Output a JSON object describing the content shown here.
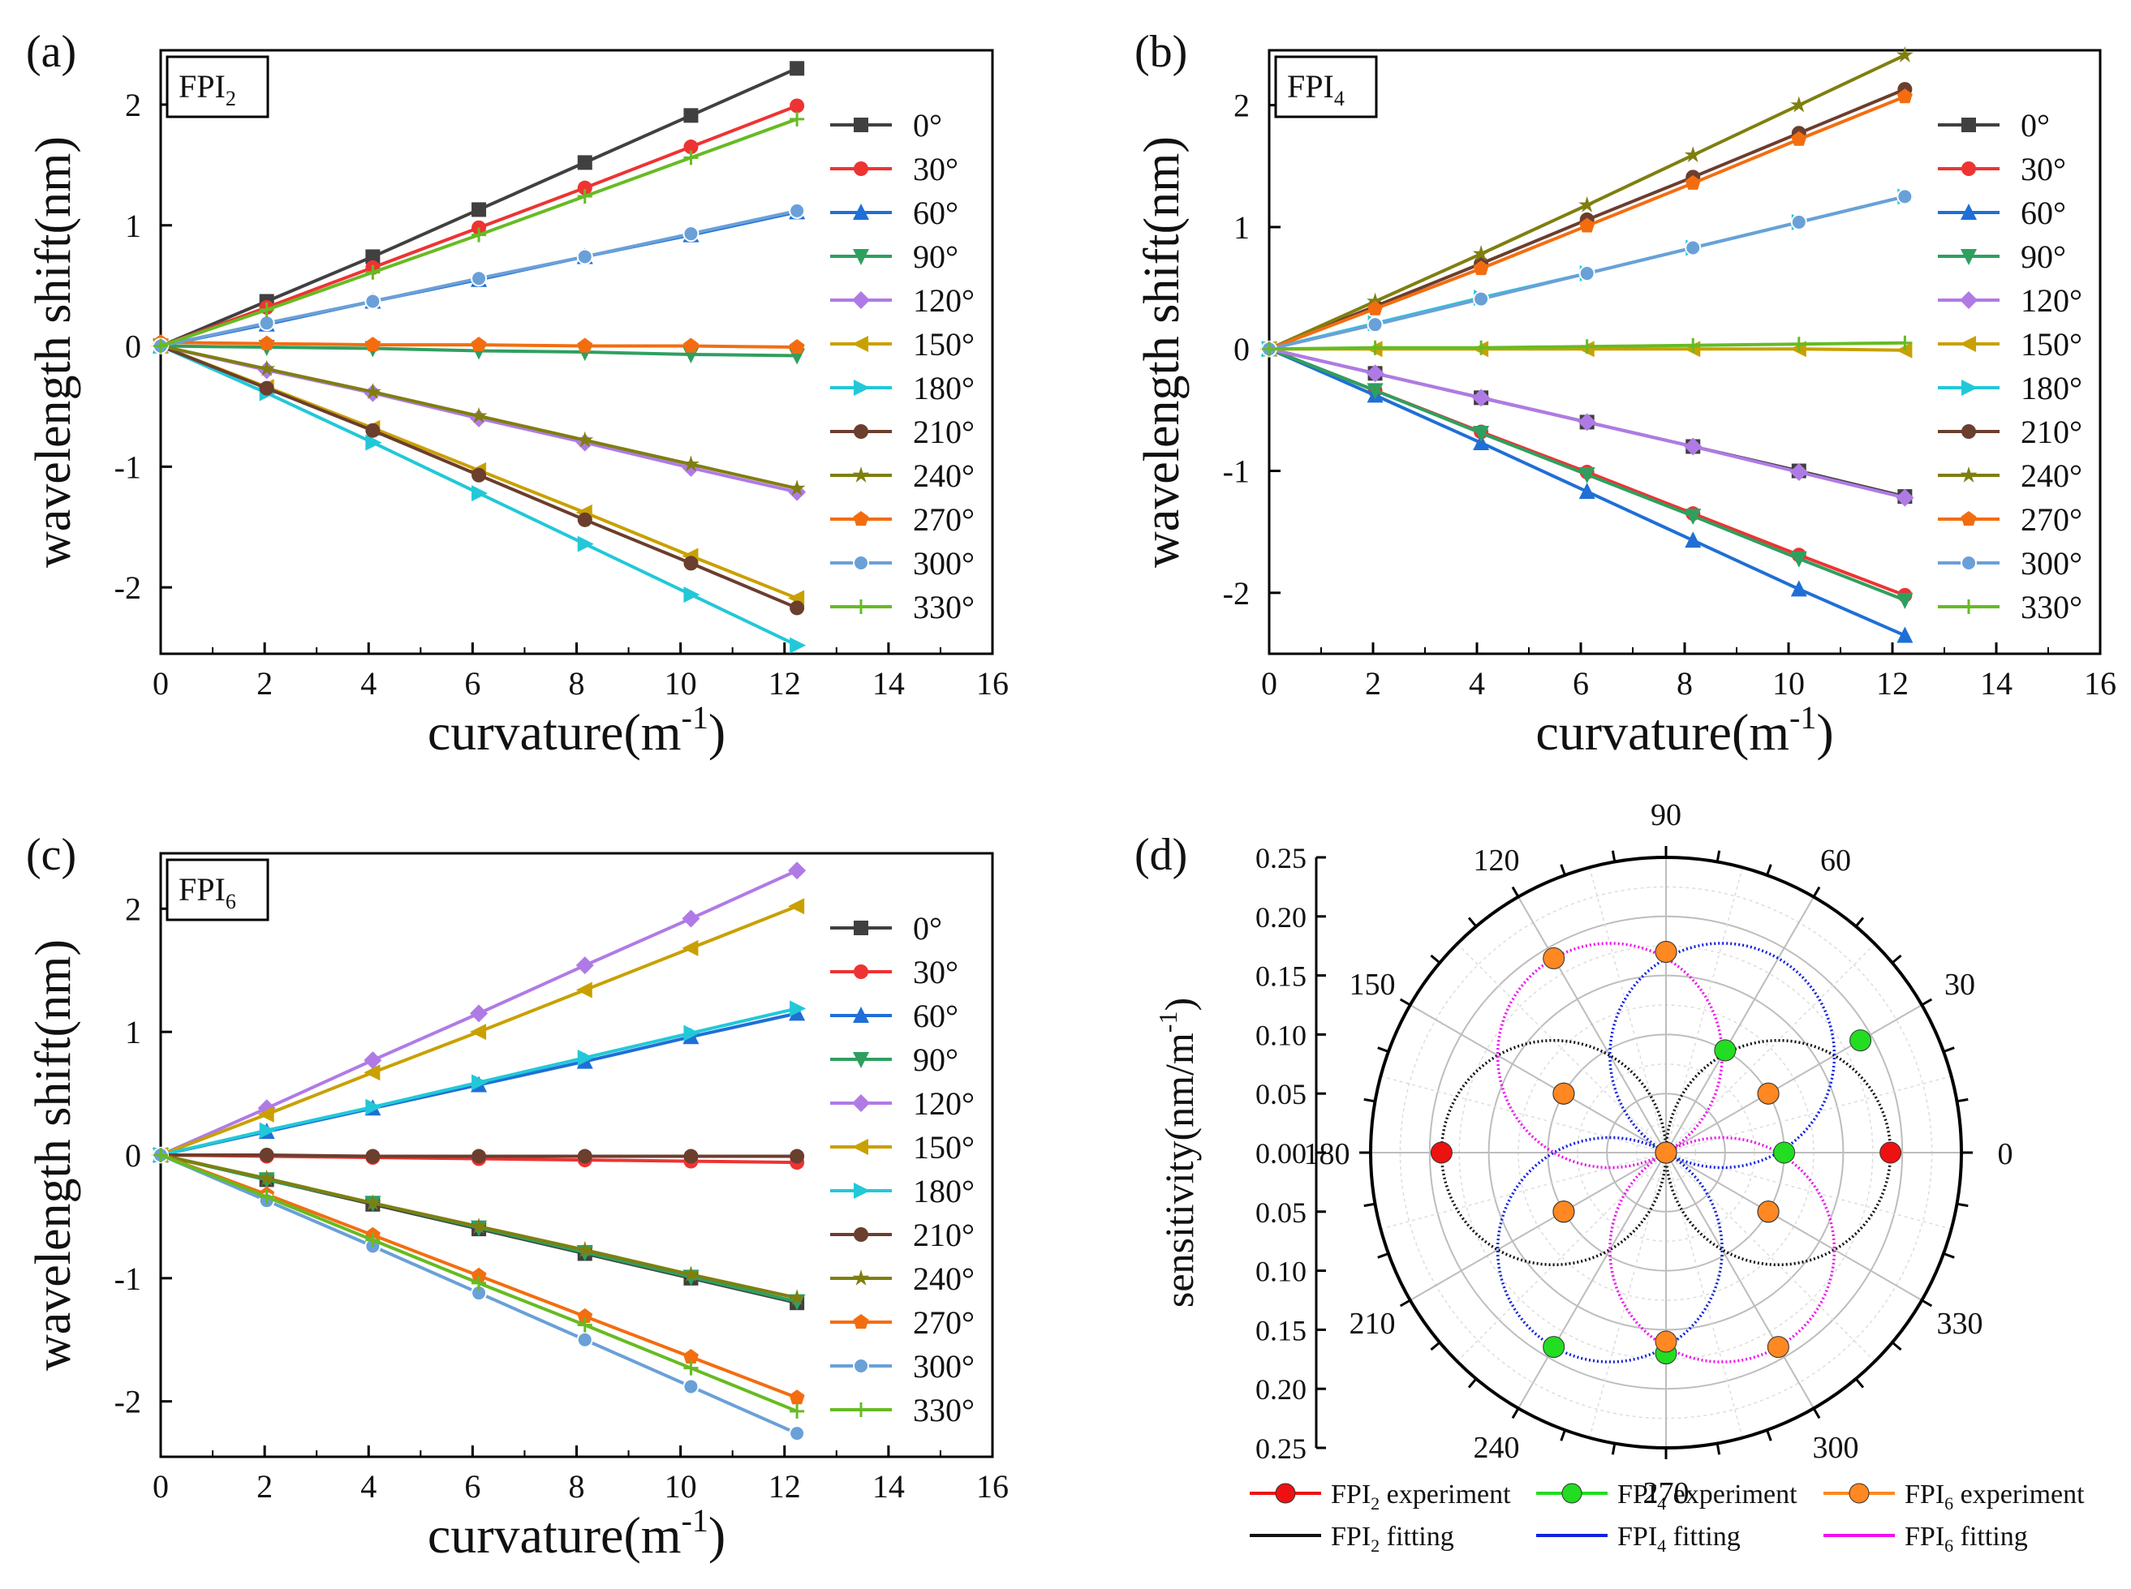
{
  "colors": {
    "0°": "#404040",
    "30°": "#ee3333",
    "60°": "#1f6fd6",
    "90°": "#2f9f5f",
    "120°": "#b07ae6",
    "150°": "#c9a000",
    "180°": "#22c8d8",
    "210°": "#6b3e2e",
    "240°": "#7f7f10",
    "270°": "#f36d10",
    "300°": "#6aa0d8",
    "330°": "#66bb22",
    "fpi2_exp": "#ee1111",
    "fpi4_exp": "#22dd22",
    "fpi6_exp": "#ff8822",
    "fpi2_fit": "#111111",
    "fpi4_fit": "#1122dd",
    "fpi6_fit": "#ee11ee"
  },
  "chart_data": [
    {
      "panel": "(a)",
      "type": "line",
      "label": "FPI",
      "label_sub": "2",
      "xlabel": "curvature(m",
      "xlabel_sup": "-1",
      "xlabel_end": ")",
      "ylabel": "wavelength shift(nm)",
      "xlim": [
        0,
        16
      ],
      "ylim": [
        -2.55,
        2.45
      ],
      "xticks": [
        0,
        2,
        4,
        6,
        8,
        10,
        12,
        14,
        16
      ],
      "yticks": [
        -2,
        -1,
        0,
        1,
        2
      ],
      "x": [
        0,
        2.04,
        4.08,
        6.12,
        8.16,
        10.2,
        12.24
      ],
      "series": [
        {
          "name": "0°",
          "values": [
            0,
            0.37,
            0.74,
            1.13,
            1.52,
            1.91,
            2.3
          ]
        },
        {
          "name": "30°",
          "values": [
            0,
            0.32,
            0.65,
            0.98,
            1.31,
            1.65,
            1.99
          ]
        },
        {
          "name": "60°",
          "values": [
            0,
            0.18,
            0.37,
            0.55,
            0.74,
            0.92,
            1.11
          ]
        },
        {
          "name": "90°",
          "values": [
            0,
            -0.01,
            -0.02,
            -0.04,
            -0.05,
            -0.07,
            -0.08
          ]
        },
        {
          "name": "120°",
          "values": [
            0,
            -0.2,
            -0.39,
            -0.6,
            -0.8,
            -1.01,
            -1.21
          ]
        },
        {
          "name": "150°",
          "values": [
            0,
            -0.34,
            -0.68,
            -1.03,
            -1.38,
            -1.74,
            -2.09
          ]
        },
        {
          "name": "180°",
          "values": [
            0,
            -0.39,
            -0.8,
            -1.22,
            -1.64,
            -2.06,
            -2.48
          ]
        },
        {
          "name": "210°",
          "values": [
            0,
            -0.35,
            -0.7,
            -1.07,
            -1.44,
            -1.8,
            -2.17
          ]
        },
        {
          "name": "240°",
          "values": [
            0,
            -0.19,
            -0.38,
            -0.58,
            -0.78,
            -0.98,
            -1.18
          ]
        },
        {
          "name": "270°",
          "values": [
            0.03,
            0.02,
            0.01,
            0.01,
            0.0,
            0.0,
            -0.01
          ]
        },
        {
          "name": "300°",
          "values": [
            0,
            0.19,
            0.37,
            0.56,
            0.74,
            0.93,
            1.12
          ]
        },
        {
          "name": "330°",
          "values": [
            0,
            0.3,
            0.61,
            0.92,
            1.24,
            1.56,
            1.88
          ]
        }
      ]
    },
    {
      "panel": "(b)",
      "type": "line",
      "label": "FPI",
      "label_sub": "4",
      "xlabel": "curvature(m",
      "xlabel_sup": "-1",
      "xlabel_end": ")",
      "ylabel": "wavelength shift(nm)",
      "xlim": [
        0,
        16
      ],
      "ylim": [
        -2.5,
        2.45
      ],
      "xticks": [
        0,
        2,
        4,
        6,
        8,
        10,
        12,
        14,
        16
      ],
      "yticks": [
        -2,
        -1,
        0,
        1,
        2
      ],
      "x": [
        0,
        2.04,
        4.08,
        6.12,
        8.16,
        10.2,
        12.24
      ],
      "series": [
        {
          "name": "0°",
          "values": [
            0,
            -0.2,
            -0.4,
            -0.6,
            -0.8,
            -1.0,
            -1.21
          ]
        },
        {
          "name": "30°",
          "values": [
            0,
            -0.34,
            -0.68,
            -1.01,
            -1.35,
            -1.69,
            -2.02
          ]
        },
        {
          "name": "60°",
          "values": [
            0,
            -0.38,
            -0.77,
            -1.17,
            -1.57,
            -1.97,
            -2.35
          ]
        },
        {
          "name": "90°",
          "values": [
            0,
            -0.34,
            -0.69,
            -1.03,
            -1.37,
            -1.72,
            -2.06
          ]
        },
        {
          "name": "120°",
          "values": [
            0,
            -0.2,
            -0.4,
            -0.6,
            -0.8,
            -1.01,
            -1.22
          ]
        },
        {
          "name": "150°",
          "values": [
            0,
            0.0,
            0.0,
            0.0,
            0.0,
            0.0,
            -0.01
          ]
        },
        {
          "name": "180°",
          "values": [
            0,
            0.21,
            0.42,
            0.62,
            0.83,
            1.04,
            1.25
          ]
        },
        {
          "name": "210°",
          "values": [
            0,
            0.35,
            0.7,
            1.06,
            1.41,
            1.77,
            2.13
          ]
        },
        {
          "name": "240°",
          "values": [
            0,
            0.39,
            0.78,
            1.18,
            1.59,
            2.0,
            2.41
          ]
        },
        {
          "name": "270°",
          "values": [
            0,
            0.33,
            0.66,
            1.01,
            1.36,
            1.72,
            2.07
          ]
        },
        {
          "name": "300°",
          "values": [
            0,
            0.2,
            0.41,
            0.62,
            0.83,
            1.04,
            1.25
          ]
        },
        {
          "name": "330°",
          "values": [
            0,
            0.01,
            0.01,
            0.02,
            0.03,
            0.04,
            0.05
          ]
        }
      ]
    },
    {
      "panel": "(c)",
      "type": "line",
      "label": "FPI",
      "label_sub": "6",
      "xlabel": "curvature(m",
      "xlabel_sup": "-1",
      "xlabel_end": ")",
      "ylabel": "wavelength shift(nm)",
      "xlim": [
        0,
        16
      ],
      "ylim": [
        -2.45,
        2.45
      ],
      "xticks": [
        0,
        2,
        4,
        6,
        8,
        10,
        12,
        14,
        16
      ],
      "yticks": [
        -2,
        -1,
        0,
        1,
        2
      ],
      "x": [
        0,
        2.04,
        4.08,
        6.12,
        8.16,
        10.2,
        12.24
      ],
      "series": [
        {
          "name": "0°",
          "values": [
            0,
            -0.2,
            -0.4,
            -0.6,
            -0.8,
            -1.0,
            -1.2
          ]
        },
        {
          "name": "30°",
          "values": [
            0,
            -0.01,
            -0.02,
            -0.03,
            -0.04,
            -0.05,
            -0.06
          ]
        },
        {
          "name": "60°",
          "values": [
            0,
            0.19,
            0.38,
            0.57,
            0.76,
            0.96,
            1.15
          ]
        },
        {
          "name": "90°",
          "values": [
            0,
            -0.2,
            -0.39,
            -0.59,
            -0.79,
            -0.99,
            -1.19
          ]
        },
        {
          "name": "120°",
          "values": [
            0,
            0.38,
            0.77,
            1.15,
            1.54,
            1.92,
            2.31
          ]
        },
        {
          "name": "150°",
          "values": [
            0,
            0.33,
            0.67,
            1.0,
            1.34,
            1.68,
            2.02
          ]
        },
        {
          "name": "180°",
          "values": [
            0,
            0.2,
            0.39,
            0.59,
            0.79,
            0.99,
            1.19
          ]
        },
        {
          "name": "210°",
          "values": [
            0,
            0.0,
            -0.01,
            -0.01,
            -0.01,
            -0.01,
            -0.01
          ]
        },
        {
          "name": "240°",
          "values": [
            0,
            -0.19,
            -0.39,
            -0.58,
            -0.77,
            -0.97,
            -1.16
          ]
        },
        {
          "name": "270°",
          "values": [
            0,
            -0.32,
            -0.65,
            -0.98,
            -1.31,
            -1.64,
            -1.97
          ]
        },
        {
          "name": "300°",
          "values": [
            0,
            -0.37,
            -0.74,
            -1.12,
            -1.5,
            -1.88,
            -2.26
          ]
        },
        {
          "name": "330°",
          "values": [
            0,
            -0.34,
            -0.69,
            -1.04,
            -1.38,
            -1.73,
            -2.08
          ]
        }
      ]
    },
    {
      "panel": "(d)",
      "type": "polar",
      "ylabel": "sensitivity(nm/m",
      "ylabel_sup": "-1",
      "ylabel_end": ")",
      "rmax": 0.25,
      "rticks": [
        0.05,
        0.1,
        0.15,
        0.2,
        0.25
      ],
      "yaxis_tick_labels": [
        "0.25",
        "0.20",
        "0.15",
        "0.10",
        "0.05",
        "0.00",
        "0.05",
        "0.10",
        "0.15",
        "0.20",
        "0.25"
      ],
      "angle_labels": [
        "0",
        "30",
        "60",
        "90",
        "120",
        "150",
        "180",
        "210",
        "240",
        "270",
        "300",
        "330"
      ],
      "angles_deg": [
        0,
        30,
        60,
        90,
        120,
        150,
        180,
        210,
        240,
        270,
        300,
        330
      ],
      "fits": [
        {
          "name": "FPI2 fitting",
          "amplitude": 0.19,
          "lobe_axis_deg": 0
        },
        {
          "name": "FPI4 fitting",
          "amplitude": 0.19,
          "lobe_axis_deg": 60
        },
        {
          "name": "FPI6 fitting",
          "amplitude": 0.19,
          "lobe_axis_deg": 120
        }
      ],
      "experiments": [
        {
          "name": "FPI2 experiment",
          "values": [
            0.19,
            0.1,
            0.0,
            0.0,
            0.0,
            0.1,
            0.19,
            0.1,
            0.0,
            0.0,
            0.0,
            0.1
          ]
        },
        {
          "name": "FPI4 experiment",
          "values": [
            0.1,
            0.19,
            0.1,
            0.17,
            0.0,
            0.1,
            0.0,
            0.1,
            0.19,
            0.17,
            0.0,
            0.1
          ]
        },
        {
          "name": "FPI6 experiment",
          "values": [
            0.0,
            0.1,
            0.0,
            0.17,
            0.19,
            0.1,
            0.0,
            0.1,
            0.0,
            0.16,
            0.19,
            0.1
          ]
        }
      ],
      "legend": [
        {
          "label": "FPI",
          "sub": "2",
          "rest": " experiment",
          "kind": "exp"
        },
        {
          "label": "FPI",
          "sub": "4",
          "rest": " experiment",
          "kind": "exp"
        },
        {
          "label": "FPI",
          "sub": "6",
          "rest": " experiment",
          "kind": "exp"
        },
        {
          "label": "FPI",
          "sub": "2",
          "rest": " fitting",
          "kind": "fit"
        },
        {
          "label": "FPI",
          "sub": "4",
          "rest": " fitting",
          "kind": "fit"
        },
        {
          "label": "FPI",
          "sub": "6",
          "rest": " fitting",
          "kind": "fit"
        }
      ]
    }
  ]
}
